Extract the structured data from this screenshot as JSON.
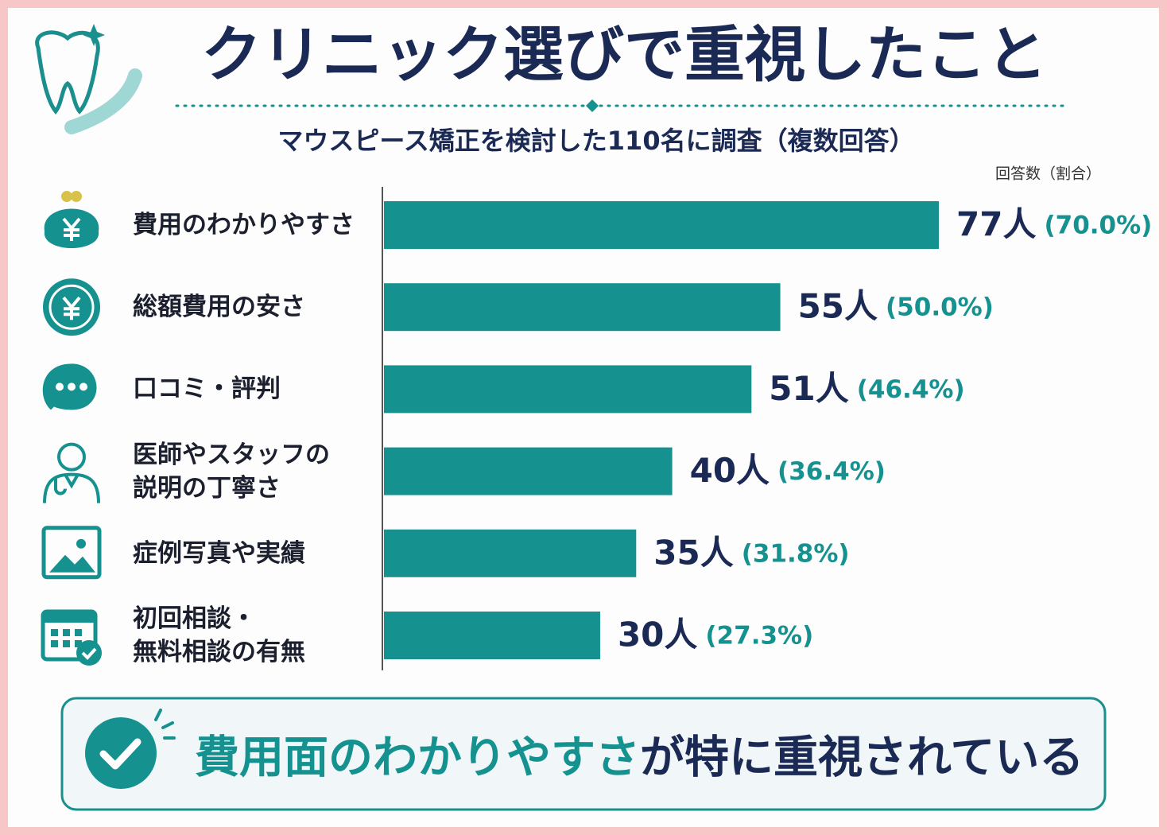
{
  "chart_data": {
    "type": "hbar",
    "title": "クリニック選びで重視したこと",
    "subtitle": "マウスピース矯正を検討した110名に調査（複数回答）",
    "unit_note": "回答数（割合）",
    "categories": [
      "費用のわかりやすさ",
      "総額費用の安さ",
      "口コミ・評判",
      "医師やスタッフの\n説明の丁寧さ",
      "症例写真や実績",
      "初回相談・\n無料相談の有無"
    ],
    "values": [
      77,
      55,
      51,
      40,
      35,
      30
    ],
    "value_labels": [
      "77人",
      "55人",
      "51人",
      "40人",
      "35人",
      "30人"
    ],
    "shares": [
      70.0,
      50.0,
      46.4,
      36.4,
      31.8,
      27.3
    ],
    "share_labels": [
      "(70.0%)",
      "(50.0%)",
      "(46.4%)",
      "(36.4%)",
      "(31.8%)",
      "(27.3%)"
    ],
    "color": "#15918f",
    "callout": {
      "highlight": "費用面のわかりやすさ",
      "rest": "が特に重視されている"
    }
  }
}
